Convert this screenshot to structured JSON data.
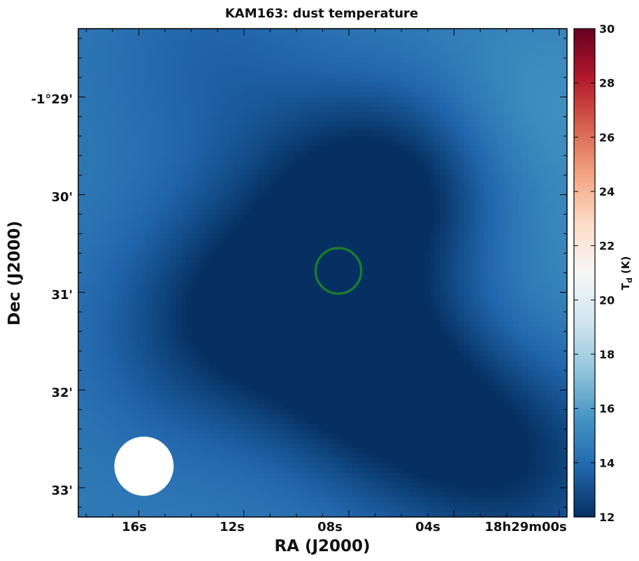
{
  "chart_data": {
    "type": "heatmap",
    "title": "KAM163: dust temperature",
    "xlabel": "RA (J2000)",
    "ylabel": "Dec (J2000)",
    "x_ticks": [
      "16s",
      "12s",
      "08s",
      "04s",
      "18h29m00s"
    ],
    "y_ticks": [
      "-1°29'",
      "30'",
      "31'",
      "32'",
      "33'"
    ],
    "colorbar": {
      "label": "T",
      "label_sub": "d",
      "label_unit": " (K)",
      "min": 12,
      "max": 30,
      "ticks": [
        "12",
        "14",
        "16",
        "18",
        "20",
        "22",
        "24",
        "26",
        "28",
        "30"
      ],
      "colormap": "RdBu_r"
    },
    "field_base_K": 14.6,
    "cold_features_K": [
      {
        "ra_s": 11.6,
        "dec_arcmin": 30.95,
        "temp_K": 12.6
      },
      {
        "ra_s": 8.5,
        "dec_arcmin": 29.9,
        "temp_K": 13.2
      },
      {
        "ra_s": 5.8,
        "dec_arcmin": 29.95,
        "temp_K": 12.4
      },
      {
        "ra_s": 8.0,
        "dec_arcmin": 31.6,
        "temp_K": 12.7
      },
      {
        "ra_s": 6.0,
        "dec_arcmin": 32.1,
        "temp_K": 12.9
      },
      {
        "ra_s": 3.0,
        "dec_arcmin": 32.6,
        "temp_K": 13.3
      },
      {
        "ra_s": 0.8,
        "dec_arcmin": 32.85,
        "temp_K": 13.4
      },
      {
        "ra_s": 14.0,
        "dec_arcmin": 31.6,
        "temp_K": 13.5
      },
      {
        "ra_s": 13.0,
        "dec_arcmin": 28.6,
        "temp_K": 13.7
      }
    ],
    "warm_features_K": [
      {
        "ra_s": 1.0,
        "dec_arcmin": 29.2,
        "temp_K": 15.6
      },
      {
        "ra_s": 0.5,
        "dec_arcmin": 30.8,
        "temp_K": 15.2
      },
      {
        "ra_s": 9.0,
        "dec_arcmin": 28.6,
        "temp_K": 14.8
      }
    ],
    "markers": [
      {
        "name": "source-circle",
        "ra_s": 8.4,
        "dec_arcmin": 30.78,
        "radius_arcsec": 14,
        "color": "#1a7a2e"
      },
      {
        "name": "beam",
        "ra_s": 15.8,
        "dec_arcmin": 32.78,
        "radius_arcsec": 18.2,
        "color": "#ffffff"
      }
    ],
    "xlim_ra_s": [
      18.3,
      -0.3
    ],
    "ylim_dec_arcmin": [
      28.3,
      33.3
    ]
  }
}
